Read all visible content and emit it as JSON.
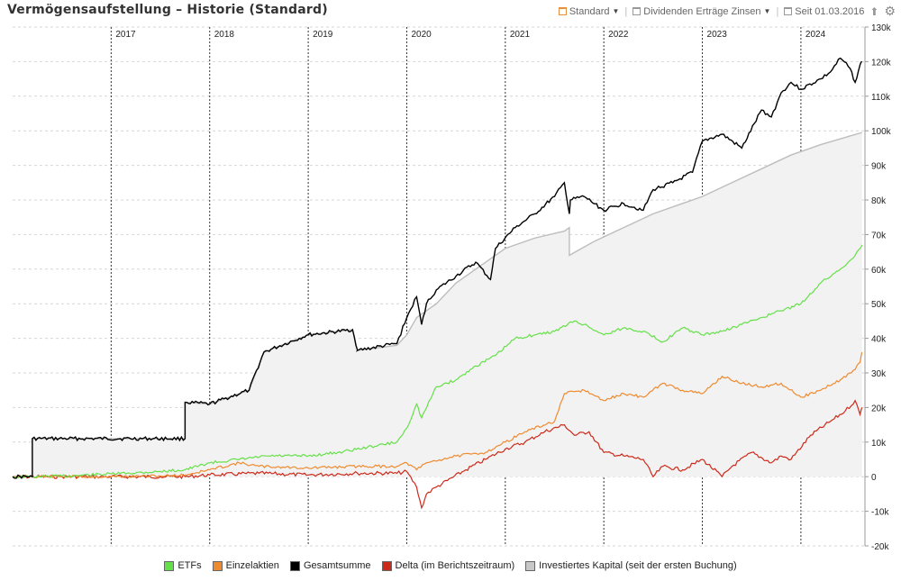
{
  "header": {
    "title": "Vermögensaufstellung – Historie (Standard)",
    "view_label": "Standard",
    "series_toggle_label": "Dividenden Erträge Zinsen",
    "since_label": "Seit 01.03.2016"
  },
  "icons": {
    "view": "layout-icon",
    "series": "series-icon",
    "calendar": "calendar-icon",
    "export": "upload-icon",
    "settings": "gear-icon"
  },
  "colors": {
    "etfs": "#66e04a",
    "einzelaktien": "#ee8b30",
    "gesamtsumme": "#000000",
    "delta": "#cc2a1a",
    "investiert": "#c8c8c8",
    "investiert_fill": "#f2f2f2"
  },
  "chart_data": {
    "type": "line",
    "title": "",
    "xlabel": "",
    "ylabel": "",
    "x_ticks": [
      "2017",
      "2018",
      "2019",
      "2020",
      "2021",
      "2022",
      "2023",
      "2024"
    ],
    "y_ticks": [
      "-20k",
      "-10k",
      "0",
      "10k",
      "20k",
      "30k",
      "40k",
      "50k",
      "60k",
      "70k",
      "80k",
      "90k",
      "100k",
      "110k",
      "120k",
      "130k"
    ],
    "xlim": [
      2016.0,
      2024.65
    ],
    "ylim": [
      -20000,
      130000
    ],
    "grid": true,
    "legend_position": "bottom",
    "series": [
      {
        "key": "investiert",
        "name": "Investiertes Kapital (seit der ersten Buchung)",
        "x": [
          2016.0,
          2016.2,
          2016.2,
          2017.75,
          2017.75,
          2018.0,
          2018.4,
          2018.55,
          2018.55,
          2019.0,
          2019.45,
          2019.5,
          2019.5,
          2019.9,
          2020.0,
          2020.1,
          2020.3,
          2020.5,
          2020.7,
          2020.9,
          2021.0,
          2021.3,
          2021.6,
          2021.65,
          2021.65,
          2021.9,
          2022.2,
          2022.5,
          2022.8,
          2023.0,
          2023.3,
          2023.6,
          2023.9,
          2024.2,
          2024.5,
          2024.62
        ],
        "y": [
          0,
          0,
          11000,
          11000,
          21500,
          21000,
          25000,
          36000,
          36000,
          41000,
          42500,
          36500,
          36500,
          38000,
          41000,
          46000,
          50000,
          56000,
          60000,
          64000,
          66000,
          69000,
          71000,
          72000,
          64000,
          68000,
          72000,
          76000,
          79000,
          81000,
          85000,
          89000,
          93000,
          96000,
          98500,
          99500
        ]
      },
      {
        "key": "gesamtsumme",
        "name": "Gesamtsumme",
        "x": [
          2016.0,
          2016.2,
          2016.2,
          2017.75,
          2017.75,
          2018.0,
          2018.4,
          2018.55,
          2018.55,
          2019.0,
          2019.45,
          2019.5,
          2019.5,
          2019.9,
          2020.0,
          2020.1,
          2020.15,
          2020.2,
          2020.3,
          2020.5,
          2020.7,
          2020.85,
          2020.9,
          2021.1,
          2021.3,
          2021.5,
          2021.6,
          2021.65,
          2021.66,
          2021.8,
          2022.0,
          2022.2,
          2022.4,
          2022.5,
          2022.7,
          2022.9,
          2023.0,
          2023.2,
          2023.4,
          2023.6,
          2023.7,
          2023.8,
          2023.9,
          2024.0,
          2024.2,
          2024.3,
          2024.4,
          2024.5,
          2024.55,
          2024.6,
          2024.62
        ],
        "y": [
          0,
          0,
          11000,
          11000,
          21500,
          21000,
          25000,
          36000,
          36000,
          41000,
          42500,
          36500,
          36500,
          38500,
          46000,
          52000,
          44000,
          50000,
          54000,
          58000,
          62000,
          57000,
          66000,
          72000,
          76000,
          81000,
          85000,
          76000,
          80000,
          81000,
          77000,
          79000,
          77000,
          83000,
          85000,
          88000,
          97000,
          99000,
          95000,
          106000,
          104000,
          111000,
          114000,
          112000,
          115000,
          117000,
          121000,
          118000,
          114000,
          119000,
          120000
        ]
      },
      {
        "key": "etfs",
        "name": "ETFs",
        "x": [
          2016.0,
          2016.2,
          2016.5,
          2017.0,
          2017.5,
          2017.75,
          2018.0,
          2018.3,
          2018.6,
          2019.0,
          2019.3,
          2019.6,
          2019.9,
          2020.0,
          2020.1,
          2020.15,
          2020.3,
          2020.5,
          2020.7,
          2020.9,
          2021.1,
          2021.3,
          2021.5,
          2021.7,
          2021.8,
          2022.0,
          2022.2,
          2022.4,
          2022.6,
          2022.8,
          2023.0,
          2023.2,
          2023.4,
          2023.6,
          2023.8,
          2024.0,
          2024.2,
          2024.4,
          2024.55,
          2024.6,
          2024.62
        ],
        "y": [
          0,
          0,
          200,
          800,
          1500,
          2000,
          4000,
          5000,
          6000,
          6000,
          7000,
          8500,
          10000,
          14000,
          21000,
          17000,
          26000,
          28000,
          32000,
          35000,
          40000,
          41000,
          42000,
          45000,
          44000,
          41000,
          43000,
          42000,
          39000,
          43000,
          41000,
          42000,
          44000,
          46000,
          48000,
          50000,
          56000,
          60000,
          64000,
          66000,
          67000
        ]
      },
      {
        "key": "einzelaktien",
        "name": "Einzelaktien",
        "x": [
          2016.0,
          2016.5,
          2017.0,
          2017.5,
          2017.75,
          2018.0,
          2018.3,
          2018.5,
          2019.0,
          2019.5,
          2019.9,
          2020.0,
          2020.1,
          2020.2,
          2020.5,
          2020.8,
          2021.0,
          2021.2,
          2021.5,
          2021.6,
          2021.8,
          2022.0,
          2022.2,
          2022.4,
          2022.6,
          2022.8,
          2023.0,
          2023.2,
          2023.4,
          2023.6,
          2023.8,
          2024.0,
          2024.2,
          2024.4,
          2024.55,
          2024.6,
          2024.62
        ],
        "y": [
          0,
          0,
          0,
          200,
          500,
          2000,
          4000,
          3000,
          2500,
          3000,
          3000,
          4000,
          2000,
          4000,
          6000,
          7000,
          10000,
          13000,
          16000,
          24000,
          25000,
          22000,
          24000,
          23000,
          27000,
          25000,
          24000,
          29000,
          27000,
          26000,
          27000,
          23000,
          25000,
          28000,
          31000,
          33000,
          36000
        ]
      },
      {
        "key": "delta",
        "name": "Delta (im Berichtszeitraum)",
        "x": [
          2016.0,
          2016.5,
          2017.0,
          2017.5,
          2017.75,
          2018.0,
          2018.5,
          2019.0,
          2019.5,
          2019.9,
          2020.0,
          2020.1,
          2020.15,
          2020.2,
          2020.3,
          2020.6,
          2020.8,
          2021.0,
          2021.2,
          2021.4,
          2021.6,
          2021.7,
          2021.85,
          2022.0,
          2022.2,
          2022.4,
          2022.5,
          2022.6,
          2022.8,
          2023.0,
          2023.2,
          2023.3,
          2023.5,
          2023.7,
          2023.8,
          2023.9,
          2024.1,
          2024.3,
          2024.45,
          2024.55,
          2024.6,
          2024.62
        ],
        "y": [
          0,
          0,
          0,
          0,
          0,
          500,
          1000,
          500,
          1000,
          1000,
          1500,
          -3000,
          -9000,
          -5000,
          -3000,
          2000,
          5000,
          8000,
          10000,
          13000,
          15000,
          12000,
          13000,
          7000,
          6000,
          5000,
          0,
          3000,
          2000,
          5000,
          0,
          3000,
          7000,
          4000,
          6000,
          5000,
          12000,
          16000,
          19000,
          22000,
          18000,
          20000
        ]
      }
    ]
  }
}
